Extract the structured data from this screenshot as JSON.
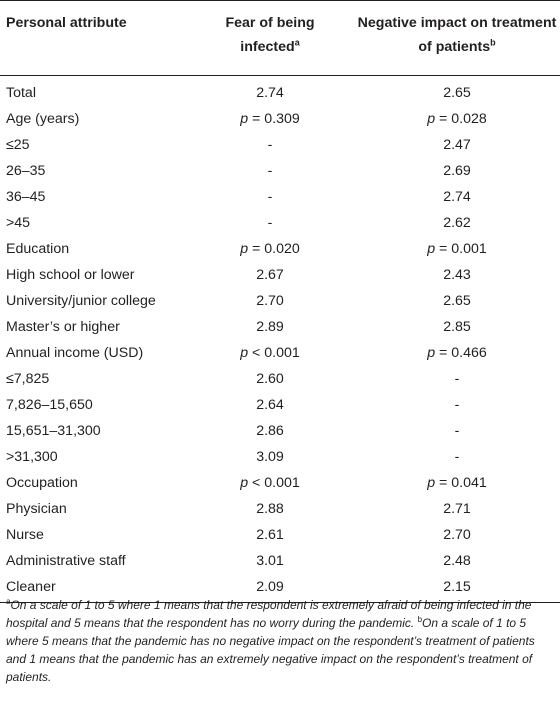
{
  "header": {
    "col1": "Personal attribute",
    "col2_line1": "Fear of being",
    "col2_line2": "infected",
    "col2_sup": "a",
    "col3_line1": "Negative impact on treatment",
    "col3_line2": "of patients",
    "col3_sup": "b"
  },
  "rows": [
    {
      "label": "Total",
      "fear": "2.74",
      "impact": "2.65"
    },
    {
      "label": "Age (years)",
      "fear": "p = 0.309",
      "impact": "p = 0.028"
    },
    {
      "label": "≤25",
      "fear": "-",
      "impact": "2.47"
    },
    {
      "label": "26–35",
      "fear": "-",
      "impact": "2.69"
    },
    {
      "label": "36–45",
      "fear": "-",
      "impact": "2.74"
    },
    {
      "label": ">45",
      "fear": "-",
      "impact": "2.62"
    },
    {
      "label": "Education",
      "fear": "p = 0.020",
      "impact": "p = 0.001"
    },
    {
      "label": "High school or lower",
      "fear": "2.67",
      "impact": "2.43"
    },
    {
      "label": "University/junior college",
      "fear": "2.70",
      "impact": "2.65"
    },
    {
      "label": "Master’s or higher",
      "fear": "2.89",
      "impact": "2.85"
    },
    {
      "label": "Annual income (USD)",
      "fear": "p < 0.001",
      "impact": "p = 0.466"
    },
    {
      "label": "≤7,825",
      "fear": "2.60",
      "impact": "-"
    },
    {
      "label": "7,826–15,650",
      "fear": "2.64",
      "impact": "-"
    },
    {
      "label": "15,651–31,300",
      "fear": "2.86",
      "impact": "-"
    },
    {
      "label": ">31,300",
      "fear": "3.09",
      "impact": "-"
    },
    {
      "label": "Occupation",
      "fear": "p < 0.001",
      "impact": "p = 0.041"
    },
    {
      "label": "Physician",
      "fear": "2.88",
      "impact": "2.71"
    },
    {
      "label": "Nurse",
      "fear": "2.61",
      "impact": "2.70"
    },
    {
      "label": "Administrative staff",
      "fear": "3.01",
      "impact": "2.48"
    },
    {
      "label": "Cleaner",
      "fear": "2.09",
      "impact": "2.15"
    }
  ],
  "footnote": {
    "a_marker": "a",
    "a_text": "On a scale of 1 to 5 where 1 means that the respondent is extremely afraid of being infected in the hospital and 5 means that the respondent has no worry during the pandemic. ",
    "b_marker": "b",
    "b_text": "On a scale of 1 to 5 where 5 means that the pandemic has no negative impact on the respondent’s treatment of patients and 1 means that the pandemic has an extremely negative impact on the respondent’s treatment of patients."
  }
}
